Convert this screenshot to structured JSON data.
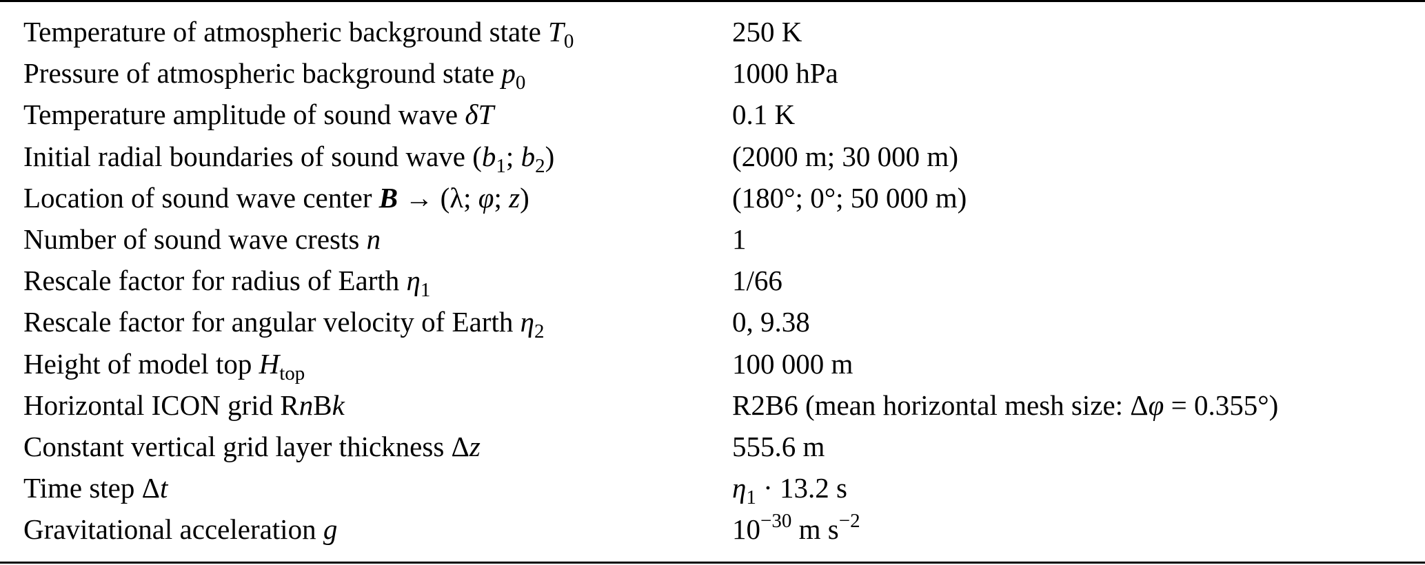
{
  "table": {
    "rows": [
      {
        "label": [
          {
            "t": "Temperature of atmospheric background state "
          },
          {
            "t": "T",
            "s": "i"
          },
          {
            "t": "0",
            "s": "sub"
          }
        ],
        "value": [
          {
            "t": "250 K"
          }
        ]
      },
      {
        "label": [
          {
            "t": "Pressure of atmospheric background state "
          },
          {
            "t": "p",
            "s": "i"
          },
          {
            "t": "0",
            "s": "sub"
          }
        ],
        "value": [
          {
            "t": "1000 hPa"
          }
        ]
      },
      {
        "label": [
          {
            "t": "Temperature amplitude of sound wave "
          },
          {
            "t": "δT",
            "s": "i"
          }
        ],
        "value": [
          {
            "t": "0.1 K"
          }
        ]
      },
      {
        "label": [
          {
            "t": "Initial radial boundaries of sound wave ("
          },
          {
            "t": "b",
            "s": "i"
          },
          {
            "t": "1",
            "s": "sub"
          },
          {
            "t": "; "
          },
          {
            "t": "b",
            "s": "i"
          },
          {
            "t": "2",
            "s": "sub"
          },
          {
            "t": ")"
          }
        ],
        "value": [
          {
            "t": "(2000 m; 30 000 m)"
          }
        ]
      },
      {
        "label": [
          {
            "t": "Location of sound wave center "
          },
          {
            "t": "B",
            "s": "b"
          },
          {
            "t": " → (λ; "
          },
          {
            "t": "φ",
            "s": "i"
          },
          {
            "t": "; "
          },
          {
            "t": "z",
            "s": "i"
          },
          {
            "t": ")"
          }
        ],
        "value": [
          {
            "t": "(180°; 0°; 50 000 m)"
          }
        ]
      },
      {
        "label": [
          {
            "t": "Number of sound wave crests "
          },
          {
            "t": "n",
            "s": "i"
          }
        ],
        "value": [
          {
            "t": "1"
          }
        ]
      },
      {
        "label": [
          {
            "t": "Rescale factor for radius of Earth "
          },
          {
            "t": "η",
            "s": "i"
          },
          {
            "t": "1",
            "s": "sub"
          }
        ],
        "value": [
          {
            "t": "1/66"
          }
        ]
      },
      {
        "label": [
          {
            "t": "Rescale factor for angular velocity of Earth "
          },
          {
            "t": "η",
            "s": "i"
          },
          {
            "t": "2",
            "s": "sub"
          }
        ],
        "value": [
          {
            "t": "0, 9.38"
          }
        ]
      },
      {
        "label": [
          {
            "t": "Height of model top "
          },
          {
            "t": "H",
            "s": "i"
          },
          {
            "t": "top",
            "s": "sub"
          }
        ],
        "value": [
          {
            "t": "100 000 m"
          }
        ]
      },
      {
        "label": [
          {
            "t": "Horizontal ICON grid R"
          },
          {
            "t": "n",
            "s": "i"
          },
          {
            "t": "B"
          },
          {
            "t": "k",
            "s": "i"
          }
        ],
        "value": [
          {
            "t": "R2B6 (mean horizontal mesh size: Δ"
          },
          {
            "t": "φ",
            "s": "i"
          },
          {
            "t": " = 0.355°)"
          }
        ]
      },
      {
        "label": [
          {
            "t": "Constant vertical grid layer thickness Δ"
          },
          {
            "t": "z",
            "s": "i"
          }
        ],
        "value": [
          {
            "t": "555.6 m"
          }
        ]
      },
      {
        "label": [
          {
            "t": "Time step Δ"
          },
          {
            "t": "t",
            "s": "i"
          }
        ],
        "value": [
          {
            "t": "η",
            "s": "i"
          },
          {
            "t": "1",
            "s": "sub"
          },
          {
            "t": " · 13.2 s"
          }
        ]
      },
      {
        "label": [
          {
            "t": "Gravitational acceleration "
          },
          {
            "t": "g",
            "s": "i"
          }
        ],
        "value": [
          {
            "t": "10"
          },
          {
            "t": "−30",
            "s": "sup"
          },
          {
            "t": " m s"
          },
          {
            "t": "−2",
            "s": "sup"
          }
        ]
      }
    ]
  }
}
